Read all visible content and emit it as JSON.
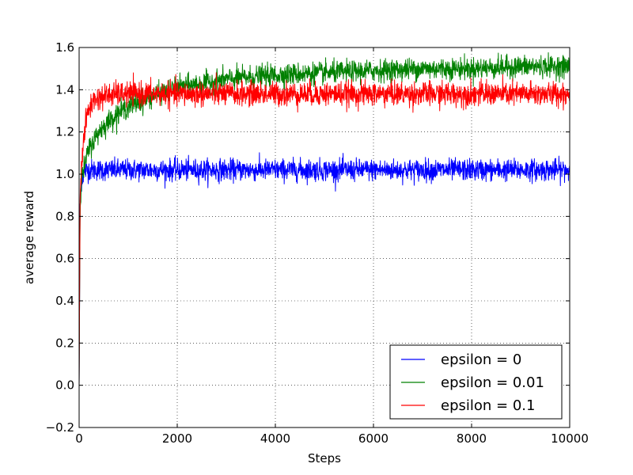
{
  "chart_data": {
    "type": "line",
    "title": "",
    "xlabel": "Steps",
    "ylabel": "average reward",
    "xlim": [
      0,
      10000
    ],
    "ylim": [
      -0.2,
      1.6
    ],
    "xticks": [
      0,
      2000,
      4000,
      6000,
      8000,
      10000
    ],
    "xtick_labels": [
      "0",
      "2000",
      "4000",
      "6000",
      "8000",
      "10000"
    ],
    "yticks": [
      -0.2,
      0.0,
      0.2,
      0.4,
      0.6,
      0.8,
      1.0,
      1.2,
      1.4,
      1.6
    ],
    "ytick_labels": [
      "−0.2",
      "0.0",
      "0.2",
      "0.4",
      "0.6",
      "0.8",
      "1.0",
      "1.2",
      "1.4",
      "1.6"
    ],
    "grid": true,
    "legend_position": "bottom-right",
    "series": [
      {
        "name": "epsilon = 0",
        "color": "#0000ff",
        "x": [
          0,
          20,
          50,
          100,
          150,
          200,
          300,
          500,
          1000,
          2000,
          3000,
          4000,
          5000,
          6000,
          7000,
          8000,
          9000,
          10000
        ],
        "y": [
          0.0,
          0.85,
          0.97,
          1.01,
          1.02,
          1.02,
          1.02,
          1.02,
          1.02,
          1.02,
          1.02,
          1.02,
          1.02,
          1.02,
          1.02,
          1.02,
          1.02,
          1.02
        ],
        "noise": 0.025
      },
      {
        "name": "epsilon = 0.01",
        "color": "#008000",
        "x": [
          0,
          20,
          50,
          100,
          200,
          400,
          600,
          800,
          1000,
          1500,
          2000,
          2500,
          3000,
          4000,
          5000,
          6000,
          7000,
          8000,
          9000,
          10000
        ],
        "y": [
          0.0,
          0.85,
          0.97,
          1.03,
          1.12,
          1.2,
          1.25,
          1.29,
          1.32,
          1.37,
          1.41,
          1.43,
          1.45,
          1.47,
          1.48,
          1.49,
          1.5,
          1.5,
          1.51,
          1.51
        ],
        "noise": 0.025
      },
      {
        "name": "epsilon = 0.1",
        "color": "#ff0000",
        "x": [
          0,
          20,
          50,
          100,
          150,
          200,
          300,
          500,
          800,
          1000,
          2000,
          3000,
          4000,
          5000,
          6000,
          7000,
          8000,
          9000,
          10000
        ],
        "y": [
          0.0,
          0.9,
          1.05,
          1.18,
          1.26,
          1.31,
          1.35,
          1.37,
          1.38,
          1.38,
          1.38,
          1.38,
          1.38,
          1.38,
          1.38,
          1.38,
          1.38,
          1.38,
          1.38
        ],
        "noise": 0.028
      }
    ]
  }
}
